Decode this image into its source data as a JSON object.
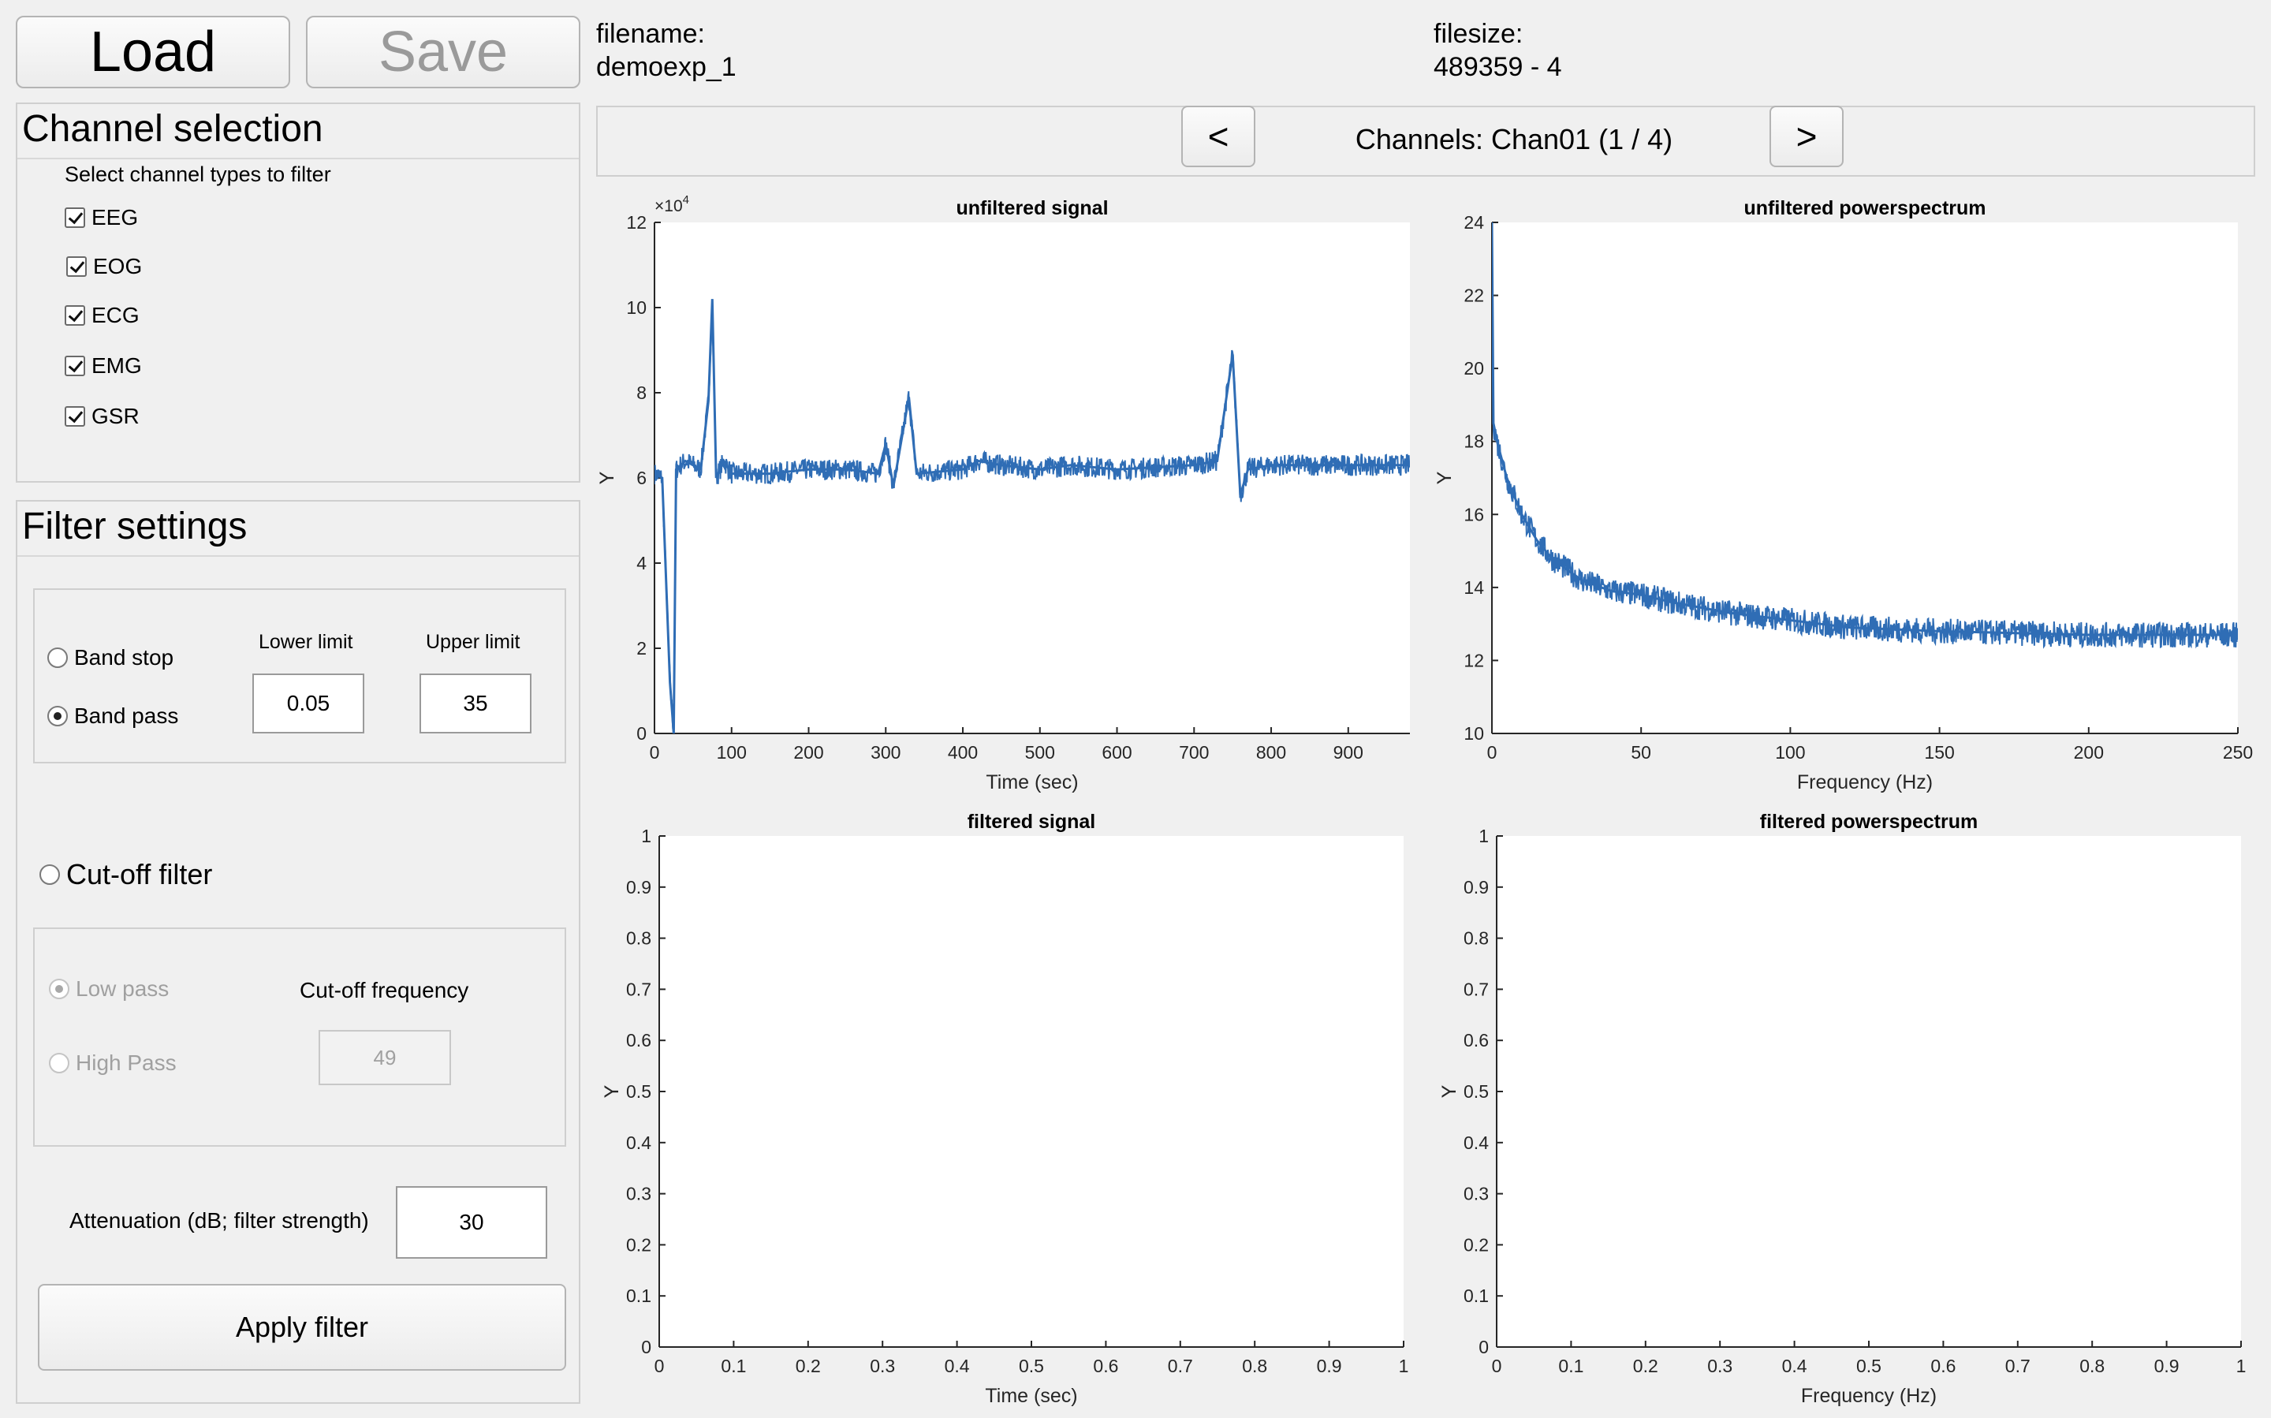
{
  "toolbar": {
    "load_label": "Load",
    "save_label": "Save"
  },
  "file": {
    "filename_label": "filename:",
    "filename_value": "demoexp_1",
    "filesize_label": "filesize:",
    "filesize_value": "489359 - 4"
  },
  "channel_selection": {
    "title": "Channel selection",
    "subtitle": "Select channel types to filter",
    "items": [
      {
        "label": "EEG",
        "checked": true
      },
      {
        "label": "EOG",
        "checked": true
      },
      {
        "label": "ECG",
        "checked": true
      },
      {
        "label": "EMG",
        "checked": true
      },
      {
        "label": "GSR",
        "checked": true
      }
    ]
  },
  "filter_settings": {
    "title": "Filter settings",
    "band_stop_label": "Band stop",
    "band_pass_label": "Band pass",
    "lower_limit_label": "Lower limit",
    "upper_limit_label": "Upper limit",
    "lower_limit_value": "0.05",
    "upper_limit_value": "35",
    "cutoff_filter_label": "Cut-off filter",
    "low_pass_label": "Low pass",
    "high_pass_label": "High Pass",
    "cutoff_frequency_label": "Cut-off frequency",
    "cutoff_frequency_value": "49",
    "attenuation_label": "Attenuation (dB; filter strength)",
    "attenuation_value": "30",
    "apply_label": "Apply filter"
  },
  "channel_nav": {
    "prev_label": "<",
    "next_label": ">",
    "text": "Channels: Chan01  (1 / 4)"
  },
  "colors": {
    "signal": "#2f6db5",
    "background": "#f0f0f0"
  },
  "chart_data": [
    {
      "type": "line",
      "title": "unfiltered signal",
      "xlabel": "Time (sec)",
      "ylabel": "Y",
      "y_exponent": "×10",
      "y_exponent_power": "4",
      "xlim": [
        0,
        980
      ],
      "ylim": [
        0,
        12
      ],
      "xticks": [
        0,
        100,
        200,
        300,
        400,
        500,
        600,
        700,
        800,
        900
      ],
      "yticks": [
        0,
        2,
        4,
        6,
        8,
        10,
        12
      ],
      "series": [
        {
          "x": [
            0,
            10,
            20,
            25,
            28,
            40,
            60,
            70,
            75,
            80,
            90,
            100,
            150,
            200,
            250,
            290,
            300,
            310,
            330,
            340,
            400,
            420,
            450,
            500,
            540,
            600,
            700,
            730,
            750,
            760,
            770,
            800,
            900,
            980
          ],
          "y": [
            6.1,
            6.0,
            1.2,
            0,
            6.2,
            6.4,
            6.2,
            7.8,
            10.2,
            6.0,
            6.4,
            6.1,
            6.1,
            6.2,
            6.2,
            6.1,
            6.8,
            5.8,
            7.9,
            6.1,
            6.2,
            6.4,
            6.3,
            6.2,
            6.3,
            6.2,
            6.3,
            6.4,
            8.9,
            5.6,
            6.2,
            6.3,
            6.3,
            6.3
          ]
        }
      ]
    },
    {
      "type": "line",
      "title": "unfiltered powerspectrum",
      "xlabel": "Frequency (Hz)",
      "ylabel": "Y",
      "xlim": [
        0,
        250
      ],
      "ylim": [
        10,
        24
      ],
      "xticks": [
        0,
        50,
        100,
        150,
        200,
        250
      ],
      "yticks": [
        10,
        12,
        14,
        16,
        18,
        20,
        22,
        24
      ],
      "series": [
        {
          "x": [
            0,
            0.5,
            2,
            5,
            10,
            15,
            20,
            30,
            40,
            50,
            60,
            80,
            100,
            120,
            150,
            200,
            250
          ],
          "y": [
            24,
            18.5,
            17.9,
            17.0,
            16.0,
            15.3,
            14.8,
            14.2,
            13.9,
            13.8,
            13.6,
            13.3,
            13.1,
            12.9,
            12.8,
            12.7,
            12.7
          ]
        }
      ]
    },
    {
      "type": "line",
      "title": "filtered signal",
      "xlabel": "Time (sec)",
      "ylabel": "Y",
      "xlim": [
        0,
        1
      ],
      "ylim": [
        0,
        1
      ],
      "xticks": [
        0,
        0.1,
        0.2,
        0.3,
        0.4,
        0.5,
        0.6,
        0.7,
        0.8,
        0.9,
        1
      ],
      "yticks": [
        0,
        0.1,
        0.2,
        0.3,
        0.4,
        0.5,
        0.6,
        0.7,
        0.8,
        0.9,
        1
      ],
      "series": []
    },
    {
      "type": "line",
      "title": "filtered powerspectrum",
      "xlabel": "Frequency (Hz)",
      "ylabel": "Y",
      "xlim": [
        0,
        1
      ],
      "ylim": [
        0,
        1
      ],
      "xticks": [
        0,
        0.1,
        0.2,
        0.3,
        0.4,
        0.5,
        0.6,
        0.7,
        0.8,
        0.9,
        1
      ],
      "yticks": [
        0,
        0.1,
        0.2,
        0.3,
        0.4,
        0.5,
        0.6,
        0.7,
        0.8,
        0.9,
        1
      ],
      "series": []
    }
  ]
}
